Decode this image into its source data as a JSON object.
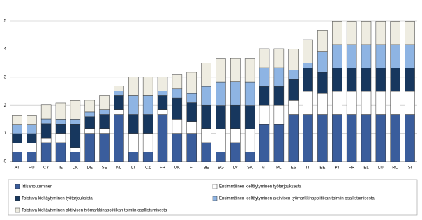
{
  "chart_data": {
    "type": "stacked-bar",
    "categories": [
      "AT",
      "HU",
      "CY",
      "IE",
      "DK",
      "DE",
      "SE",
      "NL",
      "LT",
      "CZ",
      "FR",
      "UK",
      "FI",
      "BE",
      "BG",
      "LV",
      "SK",
      "MT",
      "PL",
      "ES",
      "IT",
      "EE",
      "PT",
      "HR",
      "EL",
      "LU",
      "RO",
      "SI"
    ],
    "series": [
      {
        "name": "Irtisanoutuminen",
        "color": "#3a5d9c",
        "values": [
          0.33,
          0.33,
          0.67,
          0.67,
          0.33,
          1.0,
          1.0,
          1.67,
          0.33,
          0.33,
          1.67,
          1.0,
          1.0,
          0.67,
          0.33,
          0.67,
          0.33,
          1.33,
          1.33,
          1.67,
          1.67,
          1.67,
          1.67,
          1.67,
          1.67,
          1.67,
          1.67,
          1.67
        ]
      },
      {
        "name": "Ensimmäinen kieltäytyminen työtarjouksesta",
        "color": "#ffffff",
        "values": [
          0.33,
          0.33,
          0.17,
          0.33,
          0.17,
          0.17,
          0.17,
          0.17,
          0.67,
          0.67,
          0.17,
          0.5,
          0.42,
          0.5,
          0.83,
          0.5,
          0.83,
          0.67,
          0.67,
          0.5,
          0.83,
          0.75,
          0.83,
          0.83,
          0.83,
          0.83,
          0.83,
          0.83
        ]
      },
      {
        "name": "Toistuva kieltäytyminen työtarjouksista",
        "color": "#17375e",
        "values": [
          0.33,
          0.33,
          0.5,
          0.33,
          0.83,
          0.42,
          0.5,
          0.5,
          0.67,
          0.67,
          0.5,
          0.75,
          0.67,
          0.83,
          0.83,
          0.83,
          0.83,
          0.67,
          0.67,
          0.75,
          0.83,
          0.75,
          0.83,
          0.83,
          0.83,
          0.83,
          0.83,
          0.83
        ]
      },
      {
        "name": "Ensimmäinen kieltäytyminen aktiivisen työmarkkinapolitiikan toimiin osallistumisesta",
        "color": "#8eb4e3",
        "values": [
          0.33,
          0.33,
          0.17,
          0.17,
          0.17,
          0.17,
          0.17,
          0.17,
          0.67,
          0.67,
          0.17,
          0.33,
          0.33,
          0.67,
          0.83,
          0.83,
          0.83,
          0.67,
          0.67,
          0.33,
          0.17,
          0.75,
          0.83,
          0.83,
          0.83,
          0.83,
          0.83,
          0.83
        ]
      },
      {
        "name": "Toistuva kieltäytyminen aktiivisen työmarkkinapolitiikan toimiin osallistumisesta",
        "color": "#eeece1",
        "values": [
          0.33,
          0.33,
          0.5,
          0.58,
          0.67,
          0.42,
          0.5,
          0.17,
          0.67,
          0.67,
          0.5,
          0.5,
          0.75,
          0.83,
          0.83,
          0.83,
          0.83,
          0.67,
          0.67,
          0.75,
          0.83,
          0.75,
          0.83,
          0.83,
          0.83,
          0.83,
          0.83,
          0.83
        ]
      }
    ],
    "ylim": [
      0,
      5
    ],
    "yticks": [
      0,
      1,
      2,
      3,
      4,
      5
    ],
    "grid": true
  }
}
